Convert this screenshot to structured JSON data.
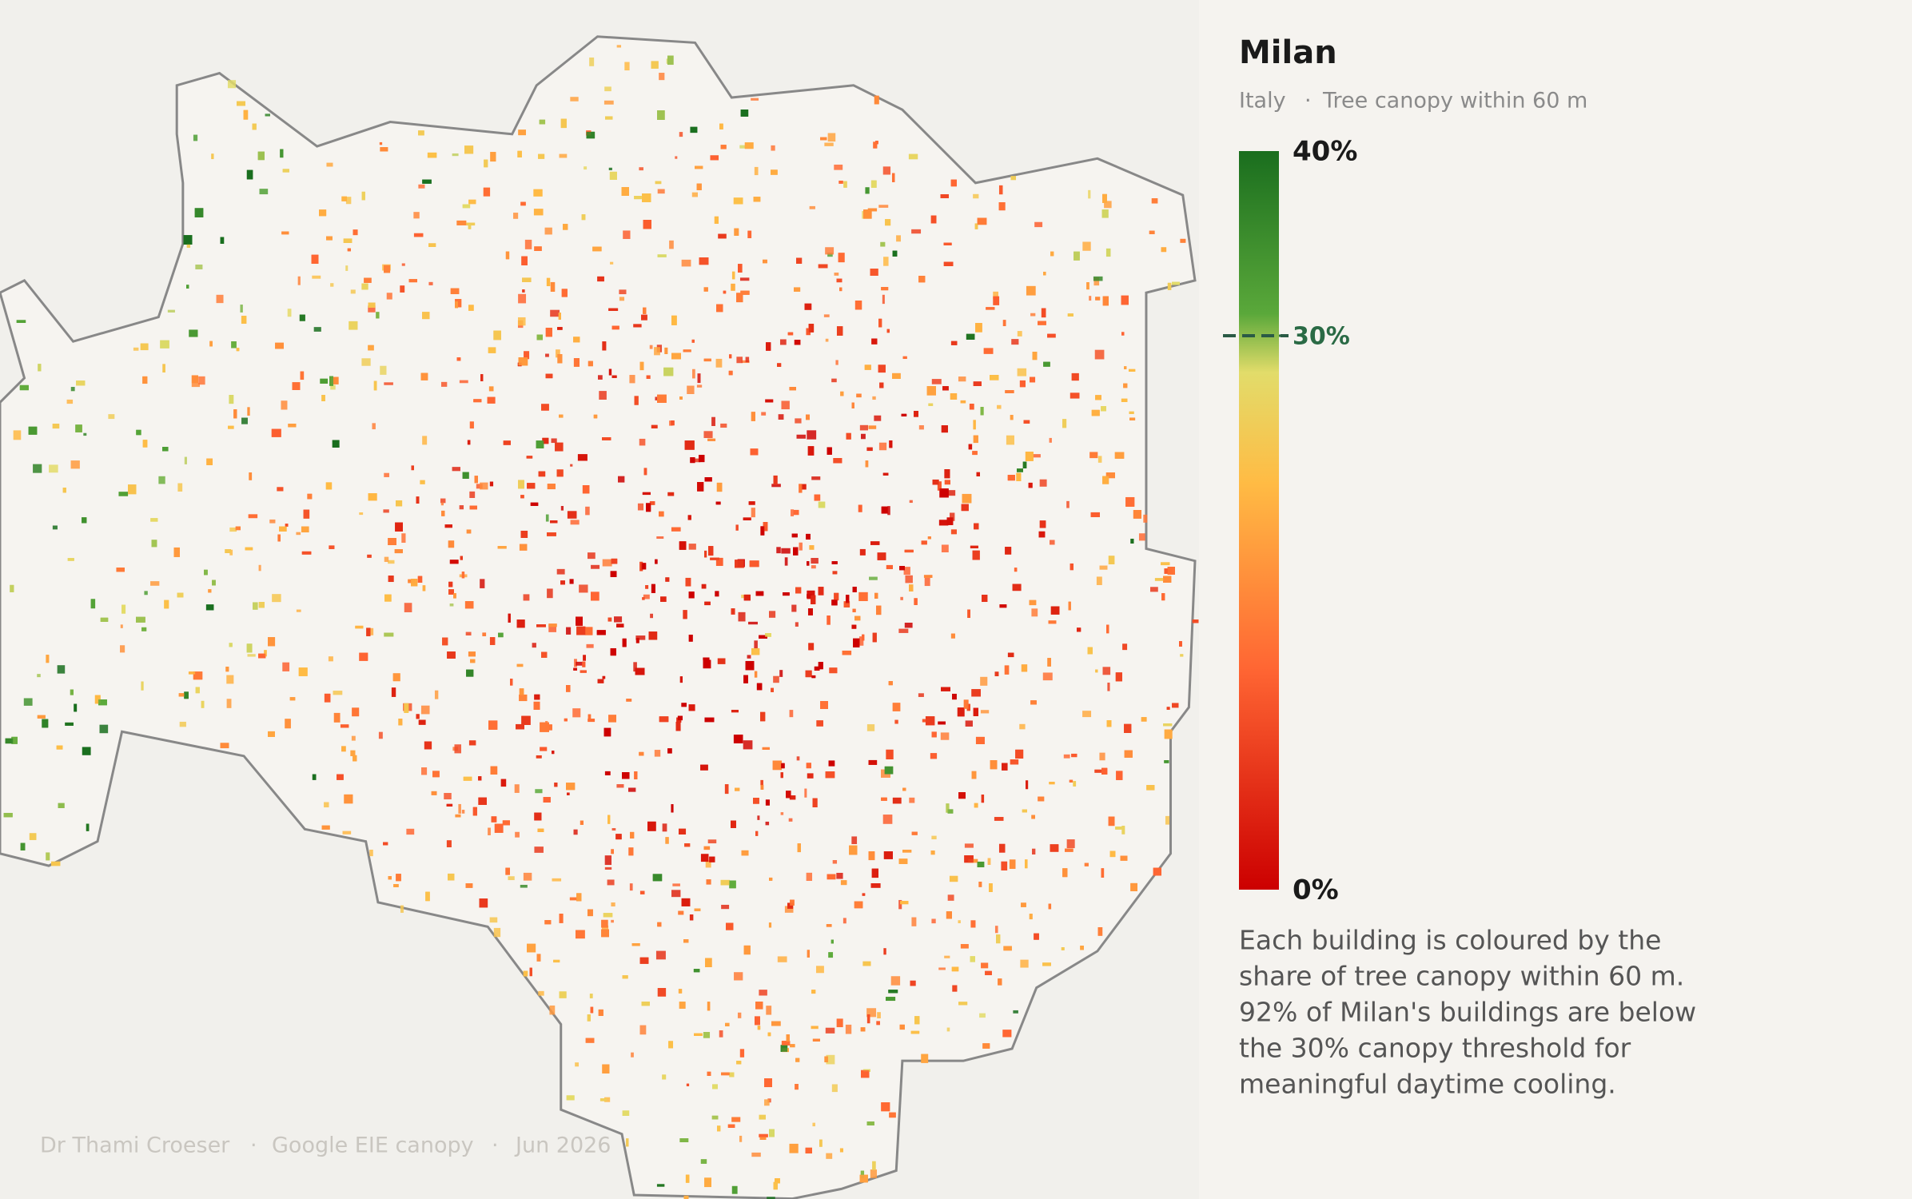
{
  "title": "Milan",
  "subtitle": [
    "Italy",
    "Tree canopy within 60 m"
  ],
  "separator": "·",
  "legend": {
    "range": [
      0,
      40
    ],
    "ticks": [
      {
        "value": 40,
        "label": "40%"
      },
      {
        "value": 30,
        "label": "30%"
      },
      {
        "value": 0,
        "label": "0%"
      }
    ],
    "threshold": 30
  },
  "description": [
    "Each building is coloured by the",
    "share of tree canopy within 60 m.",
    "92% of Milan's buildings are below",
    "the 30% canopy threshold for",
    "meaningful daytime cooling."
  ],
  "credits": [
    "Dr Thami Croeser",
    "Google EIE canopy",
    "Jun 2026"
  ]
}
